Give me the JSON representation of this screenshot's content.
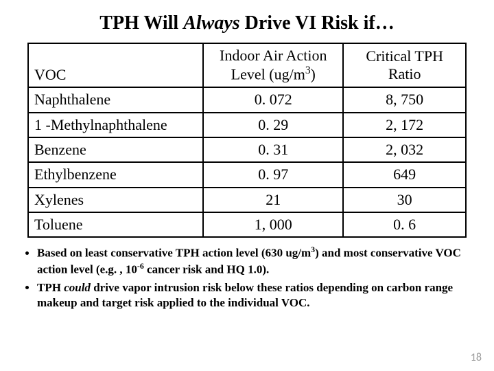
{
  "title": {
    "pre": "TPH Will ",
    "em": "Always",
    "post": " Drive VI Risk if…"
  },
  "table": {
    "headers": {
      "voc": "VOC",
      "indoor_pre": "Indoor Air Action Level (ug/m",
      "indoor_sup": "3",
      "indoor_post": ")",
      "ratio": "Critical TPH Ratio"
    },
    "rows": [
      {
        "voc": "Naphthalene",
        "indoor": "0. 072",
        "ratio": "8, 750"
      },
      {
        "voc": "1 -Methylnaphthalene",
        "indoor": "0. 29",
        "ratio": "2, 172"
      },
      {
        "voc": "Benzene",
        "indoor": "0. 31",
        "ratio": "2, 032"
      },
      {
        "voc": "Ethylbenzene",
        "indoor": "0. 97",
        "ratio": "649"
      },
      {
        "voc": "Xylenes",
        "indoor": "21",
        "ratio": "30"
      },
      {
        "voc": "Toluene",
        "indoor": "1, 000",
        "ratio": "0. 6"
      }
    ]
  },
  "bullets": {
    "b1_pre": "Based on least conservative TPH action level (630 ug/m",
    "b1_sup": "3",
    "b1_mid": ") and most conservative VOC action level (e.g. , 10",
    "b1_sup2": "-6",
    "b1_post": " cancer risk and HQ 1.0).",
    "b2_pre": "TPH ",
    "b2_em": "could",
    "b2_post": " drive vapor intrusion risk below these ratios depending on carbon range makeup and target risk applied to the individual VOC."
  },
  "page_number": "18"
}
